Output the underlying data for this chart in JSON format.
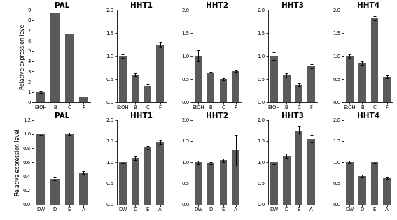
{
  "row1": {
    "titles": [
      "PAL",
      "HHT1",
      "HHT2",
      "HHT3",
      "HHT4"
    ],
    "xlabels": [
      "EtOH",
      "B",
      "C",
      "F"
    ],
    "data": [
      {
        "values": [
          1.0,
          8.7,
          6.6,
          0.5
        ],
        "errors": [
          0.05,
          0.0,
          0.0,
          0.0
        ],
        "ylim": [
          0,
          9
        ],
        "yticks": [
          0,
          1,
          2,
          3,
          4,
          5,
          6,
          7,
          8,
          9
        ]
      },
      {
        "values": [
          1.0,
          0.6,
          0.35,
          1.25
        ],
        "errors": [
          0.04,
          0.03,
          0.05,
          0.06
        ],
        "ylim": [
          0,
          2.0
        ],
        "yticks": [
          0.0,
          0.5,
          1.0,
          1.5,
          2.0
        ]
      },
      {
        "values": [
          1.0,
          0.62,
          0.5,
          0.68
        ],
        "errors": [
          0.12,
          0.03,
          0.02,
          0.03
        ],
        "ylim": [
          0,
          2.0
        ],
        "yticks": [
          0.0,
          0.5,
          1.0,
          1.5,
          2.0
        ]
      },
      {
        "values": [
          1.0,
          0.58,
          0.38,
          0.78
        ],
        "errors": [
          0.08,
          0.04,
          0.03,
          0.04
        ],
        "ylim": [
          0,
          2.0
        ],
        "yticks": [
          0.0,
          0.5,
          1.0,
          1.5,
          2.0
        ]
      },
      {
        "values": [
          1.0,
          0.85,
          1.82,
          0.55
        ],
        "errors": [
          0.04,
          0.04,
          0.05,
          0.03
        ],
        "ylim": [
          0,
          2.0
        ],
        "yticks": [
          0.0,
          0.5,
          1.0,
          1.5,
          2.0
        ]
      }
    ]
  },
  "row2": {
    "titles": [
      "PAL",
      "HHT1",
      "HHT2",
      "HHT3",
      "HHT4"
    ],
    "xlabels": [
      "DW",
      "D",
      "E",
      "A"
    ],
    "data": [
      {
        "values": [
          1.0,
          0.37,
          1.0,
          0.45
        ],
        "errors": [
          0.02,
          0.02,
          0.02,
          0.02
        ],
        "ylim": [
          0,
          1.2
        ],
        "yticks": [
          0.0,
          0.2,
          0.4,
          0.6,
          0.8,
          1.0,
          1.2
        ]
      },
      {
        "values": [
          1.0,
          1.1,
          1.35,
          1.48
        ],
        "errors": [
          0.03,
          0.04,
          0.04,
          0.04
        ],
        "ylim": [
          0,
          2.0
        ],
        "yticks": [
          0.0,
          0.5,
          1.0,
          1.5,
          2.0
        ]
      },
      {
        "values": [
          1.0,
          0.98,
          1.05,
          1.28
        ],
        "errors": [
          0.04,
          0.03,
          0.04,
          0.35
        ],
        "ylim": [
          0,
          2.0
        ],
        "yticks": [
          0.0,
          0.5,
          1.0,
          1.5,
          2.0
        ]
      },
      {
        "values": [
          1.0,
          1.15,
          1.75,
          1.55
        ],
        "errors": [
          0.04,
          0.05,
          0.1,
          0.08
        ],
        "ylim": [
          0,
          2.0
        ],
        "yticks": [
          0.0,
          0.5,
          1.0,
          1.5,
          2.0
        ]
      },
      {
        "values": [
          1.0,
          0.68,
          1.0,
          0.62
        ],
        "errors": [
          0.03,
          0.03,
          0.03,
          0.03
        ],
        "ylim": [
          0,
          2.0
        ],
        "yticks": [
          0.0,
          0.5,
          1.0,
          1.5,
          2.0
        ]
      }
    ]
  },
  "bar_color": "#5a5a5a",
  "bar_width": 0.6,
  "ylabel": "Relative expression level",
  "title_fontsize": 7.5,
  "tick_fontsize": 5.0,
  "ylabel_fontsize": 5.5,
  "width_ratios": [
    1.15,
    1.0,
    1.0,
    1.0,
    1.0
  ]
}
